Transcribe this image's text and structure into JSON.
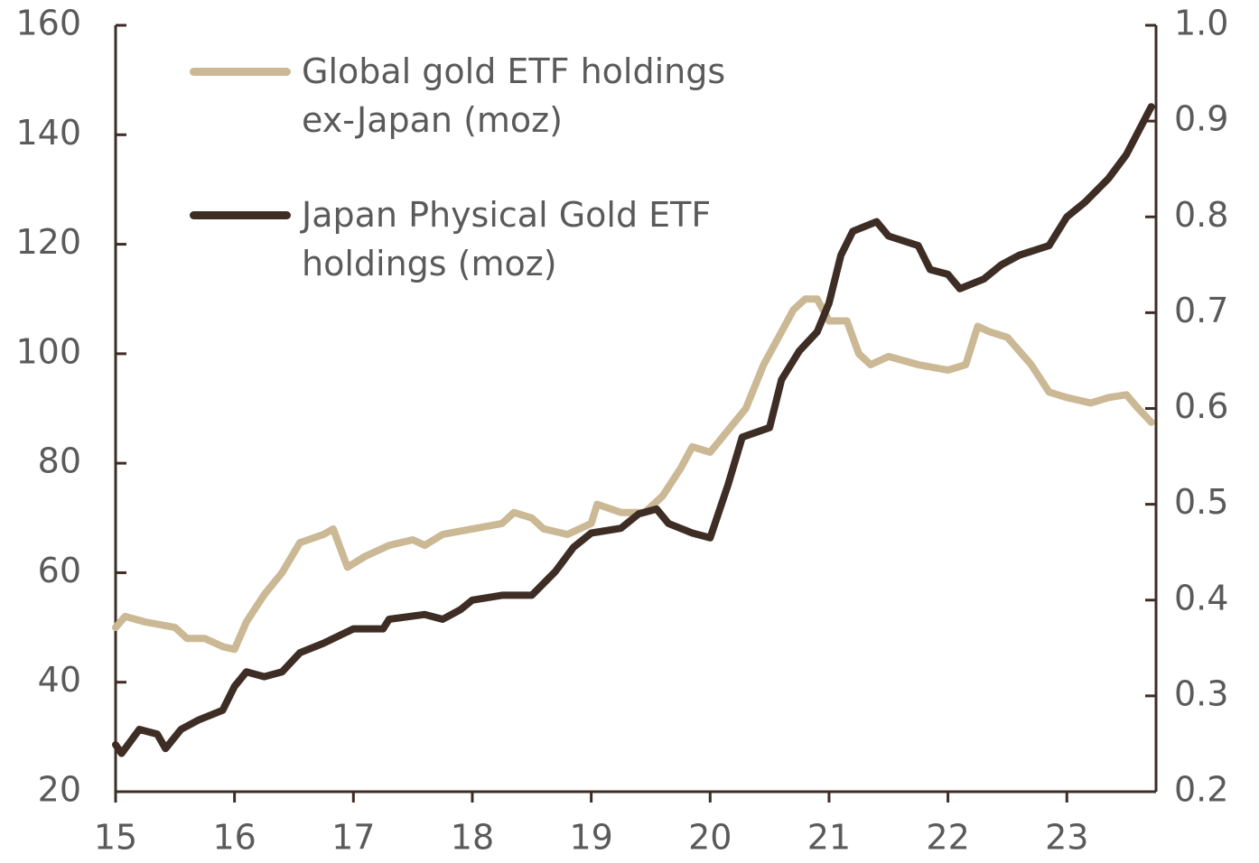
{
  "chart_data": {
    "type": "line",
    "xlim": [
      15,
      23.75
    ],
    "xticks": [
      15,
      16,
      17,
      18,
      19,
      20,
      21,
      22,
      23
    ],
    "ylim": [
      20,
      160
    ],
    "yticks": [
      20,
      40,
      60,
      80,
      100,
      120,
      140,
      160
    ],
    "y2lim": [
      0.2,
      1.0
    ],
    "y2ticks": [
      0.2,
      0.3,
      0.4,
      0.5,
      0.6,
      0.7,
      0.8,
      0.9,
      {
        "value": 1,
        "label": "1.0"
      }
    ],
    "legend": "upper left",
    "series": [
      {
        "name": "Global gold ETF holdings ex-Japan (moz)",
        "color": "#cbb894",
        "axis": "y",
        "x": [
          15.0,
          15.08,
          15.25,
          15.5,
          15.6,
          15.75,
          15.9,
          16.0,
          16.1,
          16.25,
          16.4,
          16.55,
          16.75,
          16.83,
          16.95,
          17.1,
          17.3,
          17.5,
          17.6,
          17.75,
          18.0,
          18.25,
          18.35,
          18.5,
          18.6,
          18.8,
          19.0,
          19.05,
          19.25,
          19.45,
          19.6,
          19.75,
          19.85,
          20.0,
          20.15,
          20.3,
          20.45,
          20.6,
          20.7,
          20.8,
          20.9,
          21.0,
          21.15,
          21.25,
          21.35,
          21.5,
          21.75,
          22.0,
          22.15,
          22.25,
          22.35,
          22.5,
          22.7,
          22.85,
          23.0,
          23.2,
          23.35,
          23.5,
          23.6,
          23.71
        ],
        "values": [
          50,
          52,
          51,
          50,
          48,
          48,
          46.5,
          46,
          51,
          56,
          60,
          65.5,
          67,
          68,
          61,
          63,
          65,
          66,
          65,
          67,
          68,
          69,
          71,
          70,
          68,
          67,
          69,
          72.5,
          71,
          71,
          74,
          79,
          83,
          82,
          86,
          90,
          98,
          104,
          108,
          110,
          110,
          106,
          106,
          100,
          98,
          99.5,
          98,
          97,
          98,
          105,
          104,
          103,
          98,
          93,
          92,
          91,
          92,
          92.5,
          90,
          87.5
        ]
      },
      {
        "name": "Japan Physical Gold ETF holdings (moz)",
        "color": "#3d2d25",
        "axis": "y2",
        "x": [
          15.0,
          15.05,
          15.2,
          15.35,
          15.42,
          15.55,
          15.7,
          15.9,
          16.0,
          16.1,
          16.25,
          16.4,
          16.55,
          16.75,
          17.0,
          17.25,
          17.3,
          17.6,
          17.75,
          17.9,
          18.0,
          18.25,
          18.5,
          18.7,
          18.85,
          19.0,
          19.25,
          19.4,
          19.55,
          19.65,
          19.85,
          20.0,
          20.15,
          20.27,
          20.5,
          20.6,
          20.75,
          20.9,
          21.0,
          21.1,
          21.2,
          21.4,
          21.5,
          21.75,
          21.85,
          22.0,
          22.1,
          22.3,
          22.45,
          22.6,
          22.85,
          23.0,
          23.15,
          23.35,
          23.5,
          23.71
        ],
        "values": [
          0.249,
          0.24,
          0.265,
          0.26,
          0.245,
          0.265,
          0.275,
          0.285,
          0.31,
          0.325,
          0.32,
          0.325,
          0.345,
          0.355,
          0.37,
          0.37,
          0.38,
          0.385,
          0.38,
          0.39,
          0.4,
          0.405,
          0.405,
          0.43,
          0.455,
          0.47,
          0.475,
          0.49,
          0.495,
          0.48,
          0.47,
          0.465,
          0.52,
          0.57,
          0.58,
          0.63,
          0.66,
          0.68,
          0.71,
          0.76,
          0.785,
          0.795,
          0.78,
          0.77,
          0.745,
          0.74,
          0.725,
          0.735,
          0.75,
          0.76,
          0.77,
          0.8,
          0.815,
          0.84,
          0.865,
          0.915
        ]
      }
    ]
  }
}
